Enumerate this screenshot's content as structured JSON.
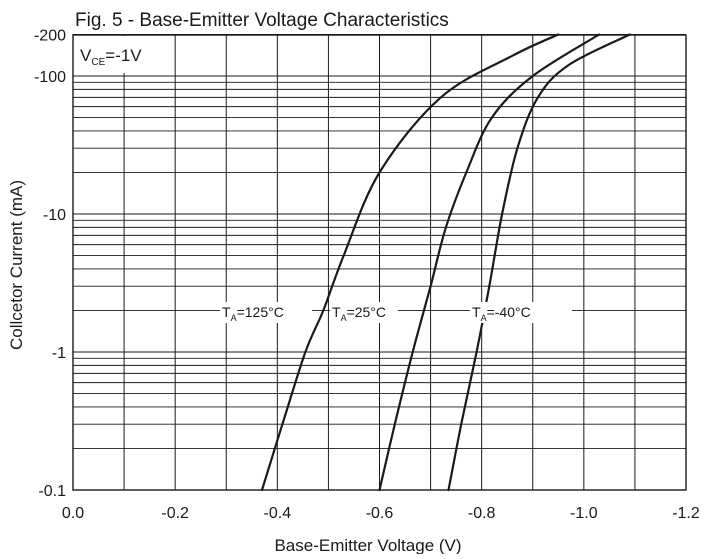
{
  "chart_data": {
    "type": "line",
    "title": "Fig. 5 - Base-Emitter Voltage Characteristics",
    "xlabel": "Base-Emitter Voltage (V)",
    "ylabel": "Collcetor Current (mA)",
    "xlim": [
      0,
      -1.2
    ],
    "ylim": [
      -0.1,
      -200
    ],
    "y_scale": "log",
    "grid": true,
    "x_ticks": [
      "0.0",
      "-0.2",
      "-0.4",
      "-0.6",
      "-0.8",
      "-1.0",
      "-1.2"
    ],
    "x_tick_values": [
      0,
      -0.2,
      -0.4,
      -0.6,
      -0.8,
      -1.0,
      -1.2
    ],
    "y_ticks": [
      "-0.1",
      "-1",
      "-10",
      "-100",
      "-200"
    ],
    "y_tick_values": [
      -0.1,
      -1,
      -10,
      -100,
      -200
    ],
    "condition": {
      "main": "V",
      "sub": "CE",
      "value": "=-1V"
    },
    "series": [
      {
        "label_main": "T",
        "label_sub": "A",
        "label_value": "=125°C",
        "x": [
          -0.37,
          -0.41,
          -0.455,
          -0.49,
          -0.53,
          -0.6,
          -0.72,
          -0.86,
          -0.95
        ],
        "y": [
          -0.1,
          -0.3,
          -1,
          -2,
          -5,
          -20,
          -70,
          -140,
          -200
        ]
      },
      {
        "label_main": "T",
        "label_sub": "A",
        "label_value": "=25°C",
        "x": [
          -0.6,
          -0.63,
          -0.665,
          -0.7,
          -0.73,
          -0.77,
          -0.82,
          -0.9,
          -1.03
        ],
        "y": [
          -0.1,
          -0.3,
          -1,
          -3,
          -8,
          -20,
          -50,
          -100,
          -200
        ]
      },
      {
        "label_main": "T",
        "label_sub": "A",
        "label_value": "=-40°C",
        "x": [
          -0.735,
          -0.76,
          -0.79,
          -0.815,
          -0.84,
          -0.87,
          -0.91,
          -0.97,
          -1.09
        ],
        "y": [
          -0.1,
          -0.3,
          -1,
          -3,
          -10,
          -30,
          -70,
          -120,
          -200
        ]
      }
    ]
  }
}
